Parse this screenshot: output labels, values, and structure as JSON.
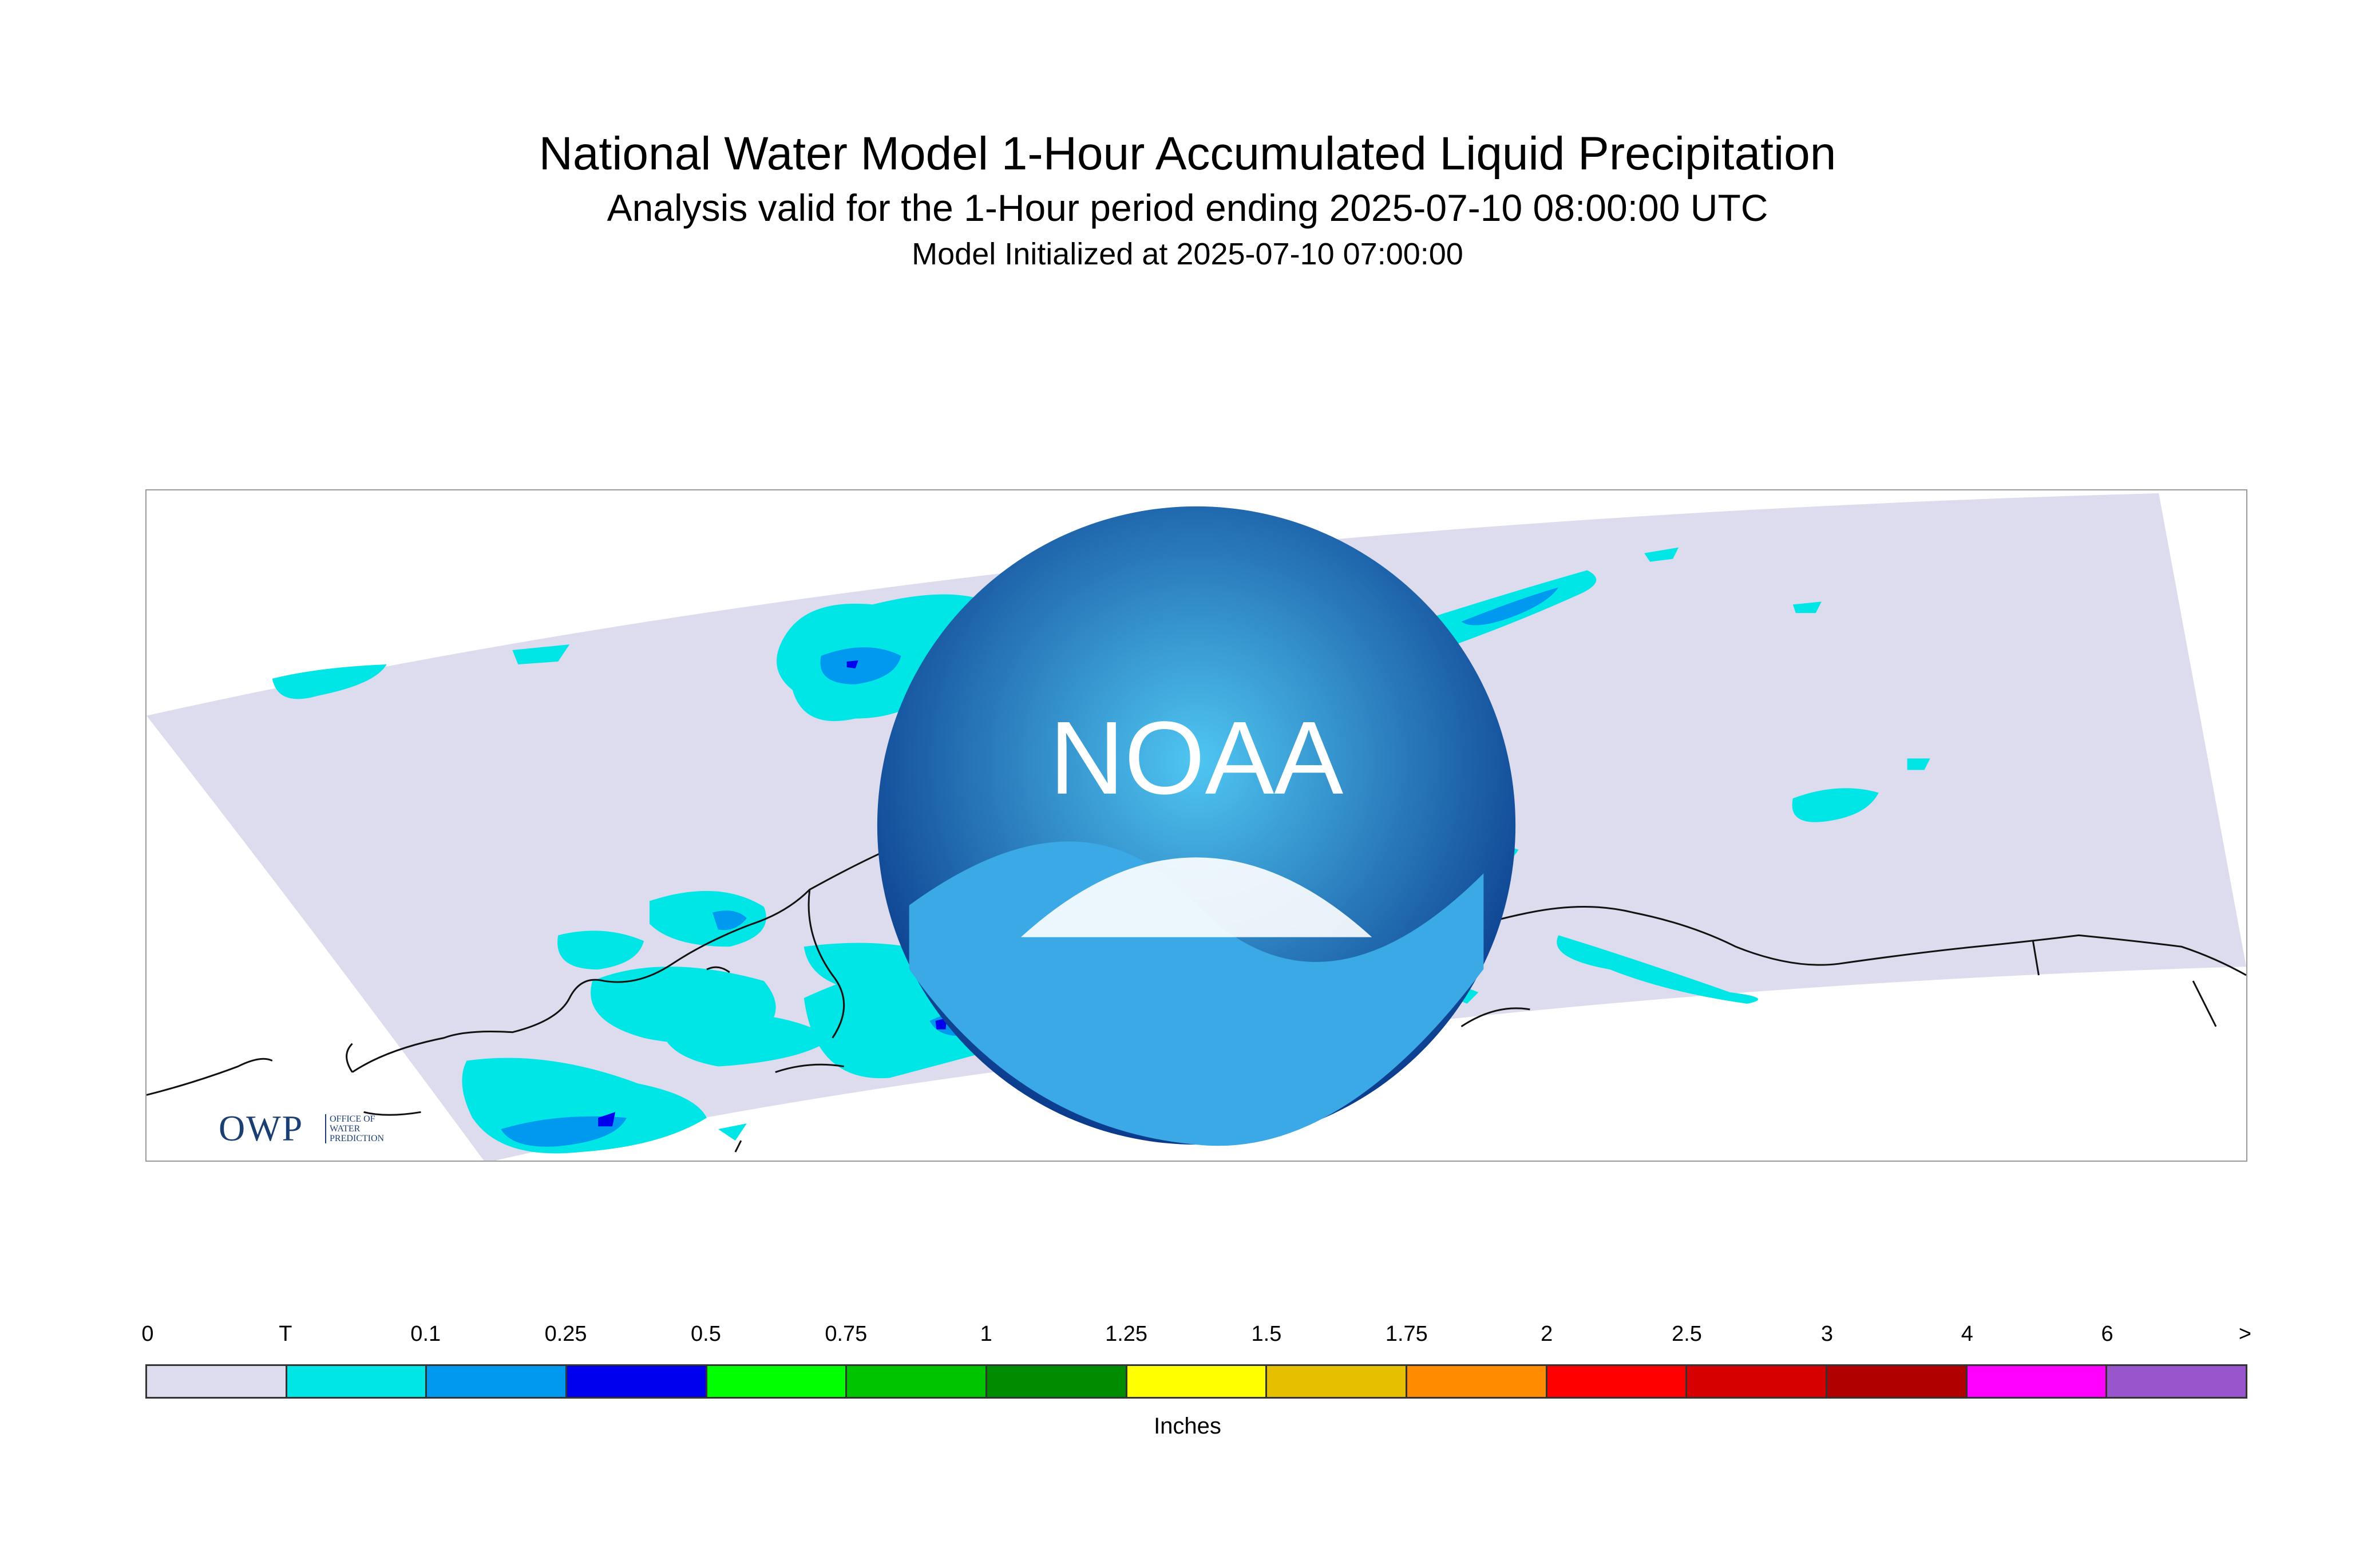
{
  "header": {
    "title": "National Water Model 1-Hour Accumulated Liquid Precipitation",
    "subtitle": "Analysis valid for the 1-Hour period ending 2025-07-10 08:00:00 UTC",
    "init_line": "Model Initialized at 2025-07-10 07:00:00"
  },
  "map": {
    "domain_fill_color": "#dcdcee",
    "coastline_color": "#111111"
  },
  "logos": {
    "owp_mark": "OWP",
    "owp_text_lines": [
      "OFFICE OF",
      "WATER",
      "PREDICTION"
    ],
    "noaa_text": "NOAA"
  },
  "legend": {
    "units": "Inches",
    "tick_labels": [
      "0",
      "T",
      "0.1",
      "0.25",
      "0.5",
      "0.75",
      "1",
      "1.25",
      "1.5",
      "1.75",
      "2",
      "2.5",
      "3",
      "4",
      "6",
      ">"
    ],
    "colors": [
      "#dcdcee",
      "#00e5e5",
      "#0099f0",
      "#0000ef",
      "#00ff00",
      "#00c400",
      "#008c00",
      "#ffff00",
      "#e6bf00",
      "#ff8c00",
      "#ff0000",
      "#d70000",
      "#b00000",
      "#ff00ff",
      "#9955cc"
    ]
  }
}
